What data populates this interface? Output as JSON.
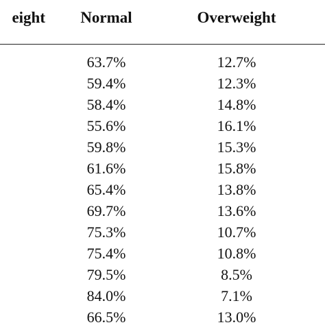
{
  "table": {
    "headers": {
      "left_partial": "eight",
      "normal": "Normal",
      "overweight": "Overweight"
    },
    "rows": [
      {
        "normal": "63.7%",
        "overweight": "12.7%"
      },
      {
        "normal": "59.4%",
        "overweight": "12.3%"
      },
      {
        "normal": "58.4%",
        "overweight": "14.8%"
      },
      {
        "normal": "55.6%",
        "overweight": "16.1%"
      },
      {
        "normal": "59.8%",
        "overweight": "15.3%"
      },
      {
        "normal": "61.6%",
        "overweight": "15.8%"
      },
      {
        "normal": "65.4%",
        "overweight": "13.8%"
      },
      {
        "normal": "69.7%",
        "overweight": "13.6%"
      },
      {
        "normal": "75.3%",
        "overweight": "10.7%"
      },
      {
        "normal": "75.4%",
        "overweight": "10.8%"
      },
      {
        "normal": "79.5%",
        "overweight": "8.5%"
      },
      {
        "normal": "84.0%",
        "overweight": "7.1%"
      },
      {
        "normal": "66.5%",
        "overweight": "13.0%"
      }
    ]
  }
}
